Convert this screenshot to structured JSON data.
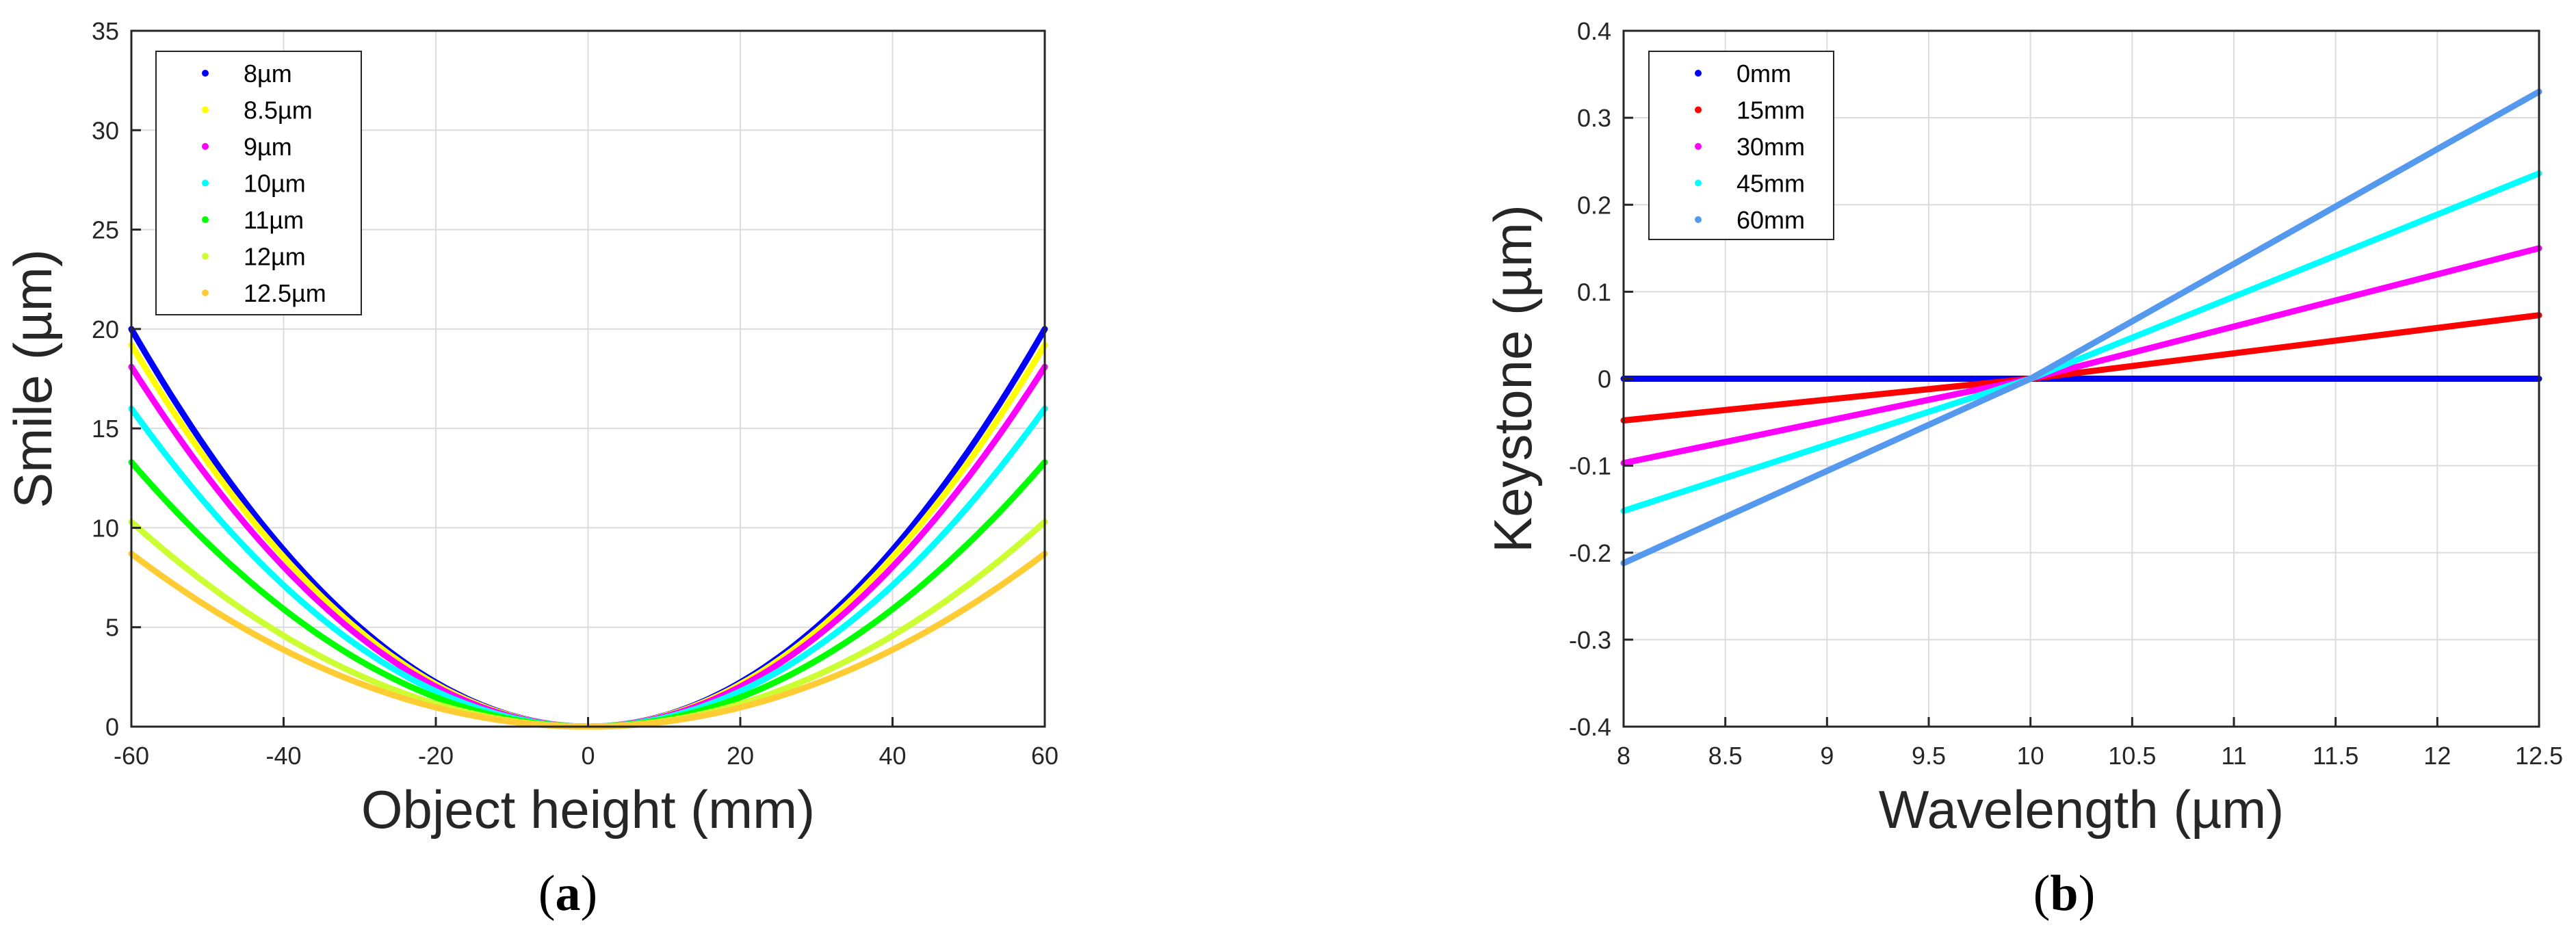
{
  "chart_data": [
    {
      "type": "line",
      "panel": "a",
      "xlabel": "Object height (mm)",
      "ylabel": "Smile (µm)",
      "xlim": [
        -60,
        60
      ],
      "ylim": [
        0,
        35
      ],
      "xticks": [
        -60,
        -40,
        -20,
        0,
        20,
        40,
        60
      ],
      "yticks": [
        0,
        5,
        10,
        15,
        20,
        25,
        30,
        35
      ],
      "grid": true,
      "legend_position": "top-left",
      "model": "y = edge_value * (x/60)^2",
      "series": [
        {
          "name": "8µm",
          "color": "#0000ff",
          "edge_value": 20.0
        },
        {
          "name": "8.5µm",
          "color": "#ffff00",
          "edge_value": 19.2
        },
        {
          "name": "9µm",
          "color": "#ff00ff",
          "edge_value": 18.1
        },
        {
          "name": "10µm",
          "color": "#00ffff",
          "edge_value": 16.0
        },
        {
          "name": "11µm",
          "color": "#00ff00",
          "edge_value": 13.3
        },
        {
          "name": "12µm",
          "color": "#ccff33",
          "edge_value": 10.3
        },
        {
          "name": "12.5µm",
          "color": "#ffcc33",
          "edge_value": 8.7
        }
      ],
      "caption": {
        "open": "(",
        "letter": "a",
        "close": ")"
      }
    },
    {
      "type": "line",
      "panel": "b",
      "xlabel": "Wavelength (µm)",
      "ylabel": "Keystone (µm)",
      "xlim": [
        8,
        12.5
      ],
      "ylim": [
        -0.4,
        0.4
      ],
      "xticks": [
        8,
        8.5,
        9,
        9.5,
        10,
        10.5,
        11,
        11.5,
        12,
        12.5
      ],
      "yticks": [
        -0.4,
        -0.3,
        -0.2,
        -0.1,
        0,
        0.1,
        0.2,
        0.3,
        0.4
      ],
      "grid": true,
      "legend_position": "top-left",
      "series": [
        {
          "name": "0mm",
          "color": "#0000ff",
          "x": [
            8,
            10,
            12.5
          ],
          "y": [
            0,
            0,
            0
          ]
        },
        {
          "name": "15mm",
          "color": "#ff0000",
          "x": [
            8,
            10,
            12.5
          ],
          "y": [
            -0.048,
            0,
            0.073
          ]
        },
        {
          "name": "30mm",
          "color": "#ff00ff",
          "x": [
            8,
            10,
            12.5
          ],
          "y": [
            -0.097,
            0,
            0.15
          ]
        },
        {
          "name": "45mm",
          "color": "#00ffff",
          "x": [
            8,
            10,
            12.5
          ],
          "y": [
            -0.152,
            0,
            0.236
          ]
        },
        {
          "name": "60mm",
          "color": "#5599ee",
          "x": [
            8,
            10,
            12.5
          ],
          "y": [
            -0.212,
            0,
            0.33
          ]
        }
      ],
      "caption": {
        "open": "(",
        "letter": "b",
        "close": ")"
      }
    }
  ]
}
